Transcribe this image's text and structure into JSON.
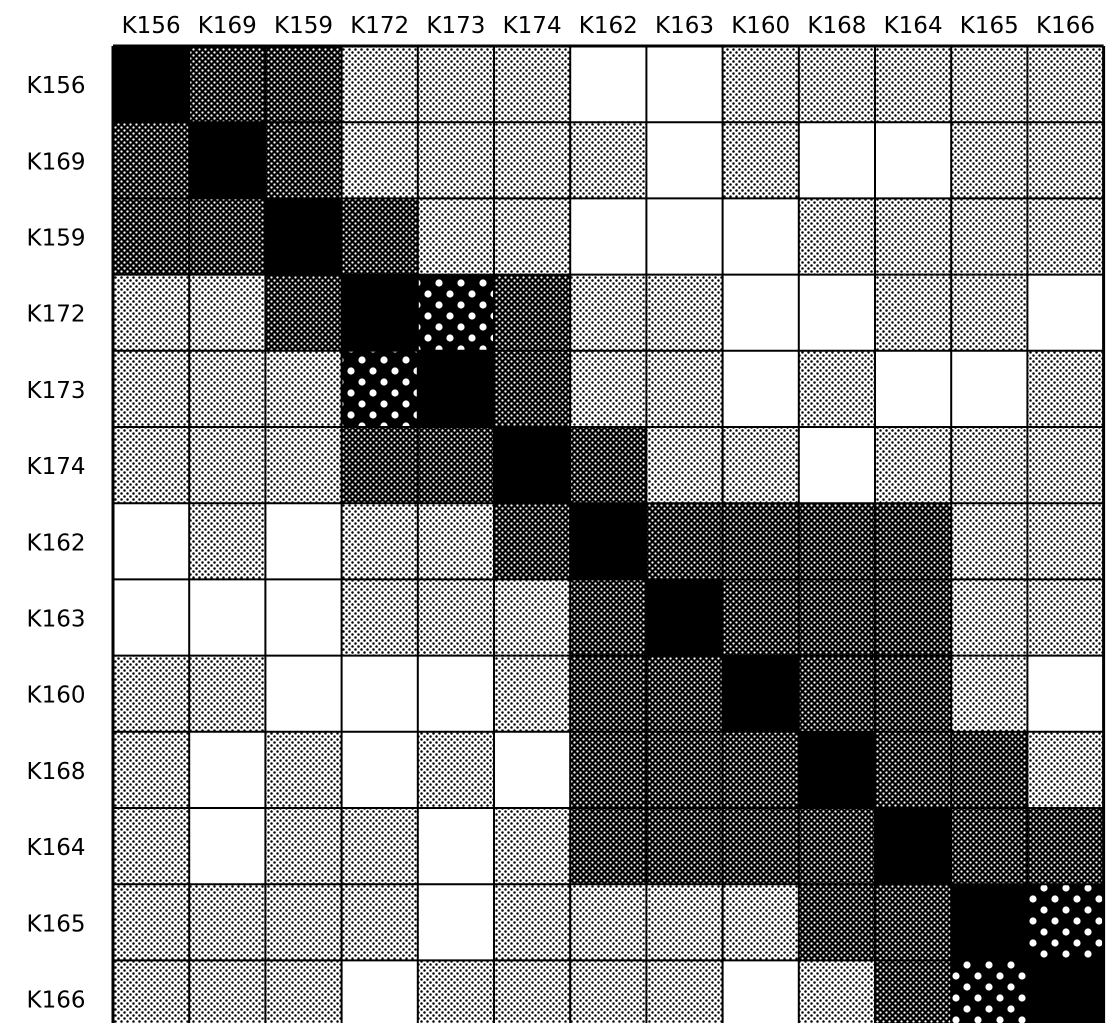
{
  "chart_data": {
    "type": "heatmap",
    "title": "",
    "xlabel": "",
    "ylabel": "",
    "x_labels": [
      "K156",
      "K169",
      "K159",
      "K172",
      "K173",
      "K174",
      "K162",
      "K163",
      "K160",
      "K168",
      "K164",
      "K165",
      "K166"
    ],
    "y_labels": [
      "K156",
      "K169",
      "K159",
      "K172",
      "K173",
      "K174",
      "K162",
      "K163",
      "K160",
      "K168",
      "K164",
      "K165",
      "K166"
    ],
    "levels": {
      "0": "white (blank)",
      "1": "light dot screen",
      "2": "dark dot screen",
      "3": "black with white dots",
      "4": "solid black"
    },
    "matrix": [
      [
        4,
        2,
        2,
        1,
        1,
        1,
        0,
        0,
        1,
        1,
        1,
        1,
        1
      ],
      [
        2,
        4,
        2,
        1,
        1,
        1,
        1,
        0,
        1,
        0,
        0,
        1,
        1
      ],
      [
        2,
        2,
        4,
        2,
        1,
        1,
        0,
        0,
        0,
        1,
        1,
        1,
        1
      ],
      [
        1,
        1,
        2,
        4,
        3,
        2,
        1,
        1,
        0,
        0,
        1,
        1,
        0
      ],
      [
        1,
        1,
        1,
        3,
        4,
        2,
        1,
        1,
        0,
        1,
        0,
        0,
        1
      ],
      [
        1,
        1,
        1,
        2,
        2,
        4,
        2,
        1,
        1,
        0,
        1,
        1,
        1
      ],
      [
        0,
        1,
        0,
        1,
        1,
        2,
        4,
        2,
        2,
        2,
        2,
        1,
        1
      ],
      [
        0,
        0,
        0,
        1,
        1,
        1,
        2,
        4,
        2,
        2,
        2,
        1,
        1
      ],
      [
        1,
        1,
        0,
        0,
        0,
        1,
        2,
        2,
        4,
        2,
        2,
        1,
        0
      ],
      [
        1,
        0,
        1,
        0,
        1,
        0,
        2,
        2,
        2,
        4,
        2,
        2,
        1
      ],
      [
        1,
        0,
        1,
        1,
        0,
        1,
        2,
        2,
        2,
        2,
        4,
        2,
        2
      ],
      [
        1,
        1,
        1,
        1,
        0,
        1,
        1,
        1,
        1,
        2,
        2,
        4,
        3
      ],
      [
        1,
        1,
        1,
        0,
        1,
        1,
        1,
        1,
        0,
        1,
        2,
        3,
        4
      ]
    ],
    "colors": {
      "ink": "#000000",
      "paper": "#ffffff"
    }
  }
}
